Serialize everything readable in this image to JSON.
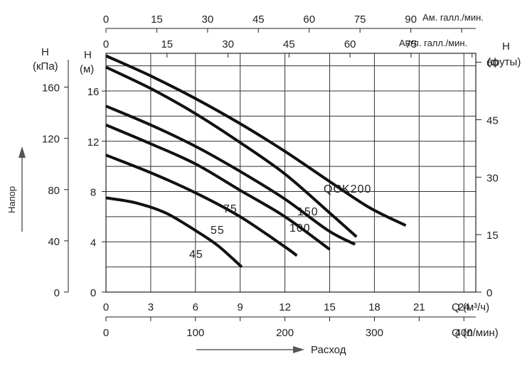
{
  "chart_data": {
    "type": "line",
    "title": "",
    "axes": {
      "flow_m3h": {
        "label": "Q (м³/ч)",
        "ticks": [
          0,
          3,
          6,
          9,
          12,
          15,
          18,
          21,
          24
        ],
        "range": [
          0,
          24.8
        ]
      },
      "flow_lmin": {
        "label": "Q (л/мин)",
        "ticks": [
          0,
          100,
          200,
          300,
          400
        ]
      },
      "flow_us_gpm": {
        "label": "Ам. галл./мин.",
        "ticks": [
          0,
          15,
          30,
          45,
          60,
          75,
          90
        ]
      },
      "flow_uk_gpm": {
        "label": "Англ. галл./мин.",
        "ticks": [
          0,
          15,
          30,
          45,
          60,
          75
        ]
      },
      "head_m": {
        "label_top": "H",
        "label_bottom": "(м)",
        "ticks": [
          0,
          4,
          8,
          12,
          16
        ],
        "range": [
          0,
          19
        ]
      },
      "head_kpa": {
        "label_top": "H",
        "label_bottom": "(кПа)",
        "ticks": [
          0,
          40,
          80,
          120,
          160
        ]
      },
      "head_ft": {
        "label_top": "H",
        "label_bottom": "(футы)",
        "ticks": [
          0,
          15,
          30,
          45,
          60
        ]
      }
    },
    "arrows": {
      "head": "Напор",
      "flow": "Расход"
    },
    "series": [
      {
        "name": "QCK200",
        "x": [
          0,
          3,
          6,
          9,
          12,
          15,
          17.7,
          20.1
        ],
        "y": [
          18.8,
          17.2,
          15.4,
          13.4,
          11.2,
          8.8,
          6.7,
          5.3
        ]
      },
      {
        "name": "150",
        "x": [
          0,
          3,
          6,
          9,
          12,
          15,
          16.8
        ],
        "y": [
          17.9,
          16.2,
          14.2,
          11.9,
          9.4,
          6.3,
          4.4
        ]
      },
      {
        "name": "100",
        "x": [
          0,
          3,
          6,
          9,
          12,
          14.9,
          16.7
        ],
        "y": [
          14.8,
          13.3,
          11.6,
          9.6,
          7.4,
          4.9,
          3.8
        ]
      },
      {
        "name": "75",
        "x": [
          0,
          3,
          6,
          9,
          12,
          15
        ],
        "y": [
          13.3,
          11.8,
          10.2,
          8.1,
          6,
          3.4
        ]
      },
      {
        "name": "55",
        "x": [
          0,
          3,
          6,
          9,
          12,
          12.8
        ],
        "y": [
          10.9,
          9.5,
          7.9,
          6,
          3.6,
          2.9
        ]
      },
      {
        "name": "45",
        "x": [
          0,
          2,
          4,
          6,
          7.5,
          9.1
        ],
        "y": [
          7.5,
          7.1,
          6.3,
          4.9,
          3.7,
          2
        ]
      }
    ],
    "legend": "none",
    "grid": true
  }
}
